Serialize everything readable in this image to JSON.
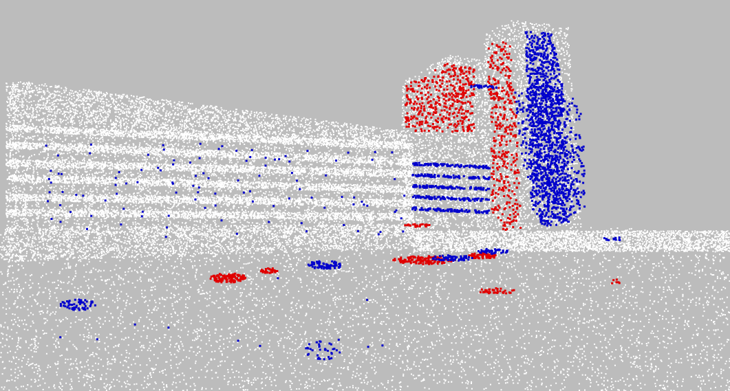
{
  "scene": {
    "kind": "point-cloud-render",
    "colors": {
      "background": "#bcbcbc",
      "unlabeled_points": "#ffffff",
      "class_red": "#e00000",
      "class_blue": "#0000cc"
    },
    "visible_text": []
  }
}
